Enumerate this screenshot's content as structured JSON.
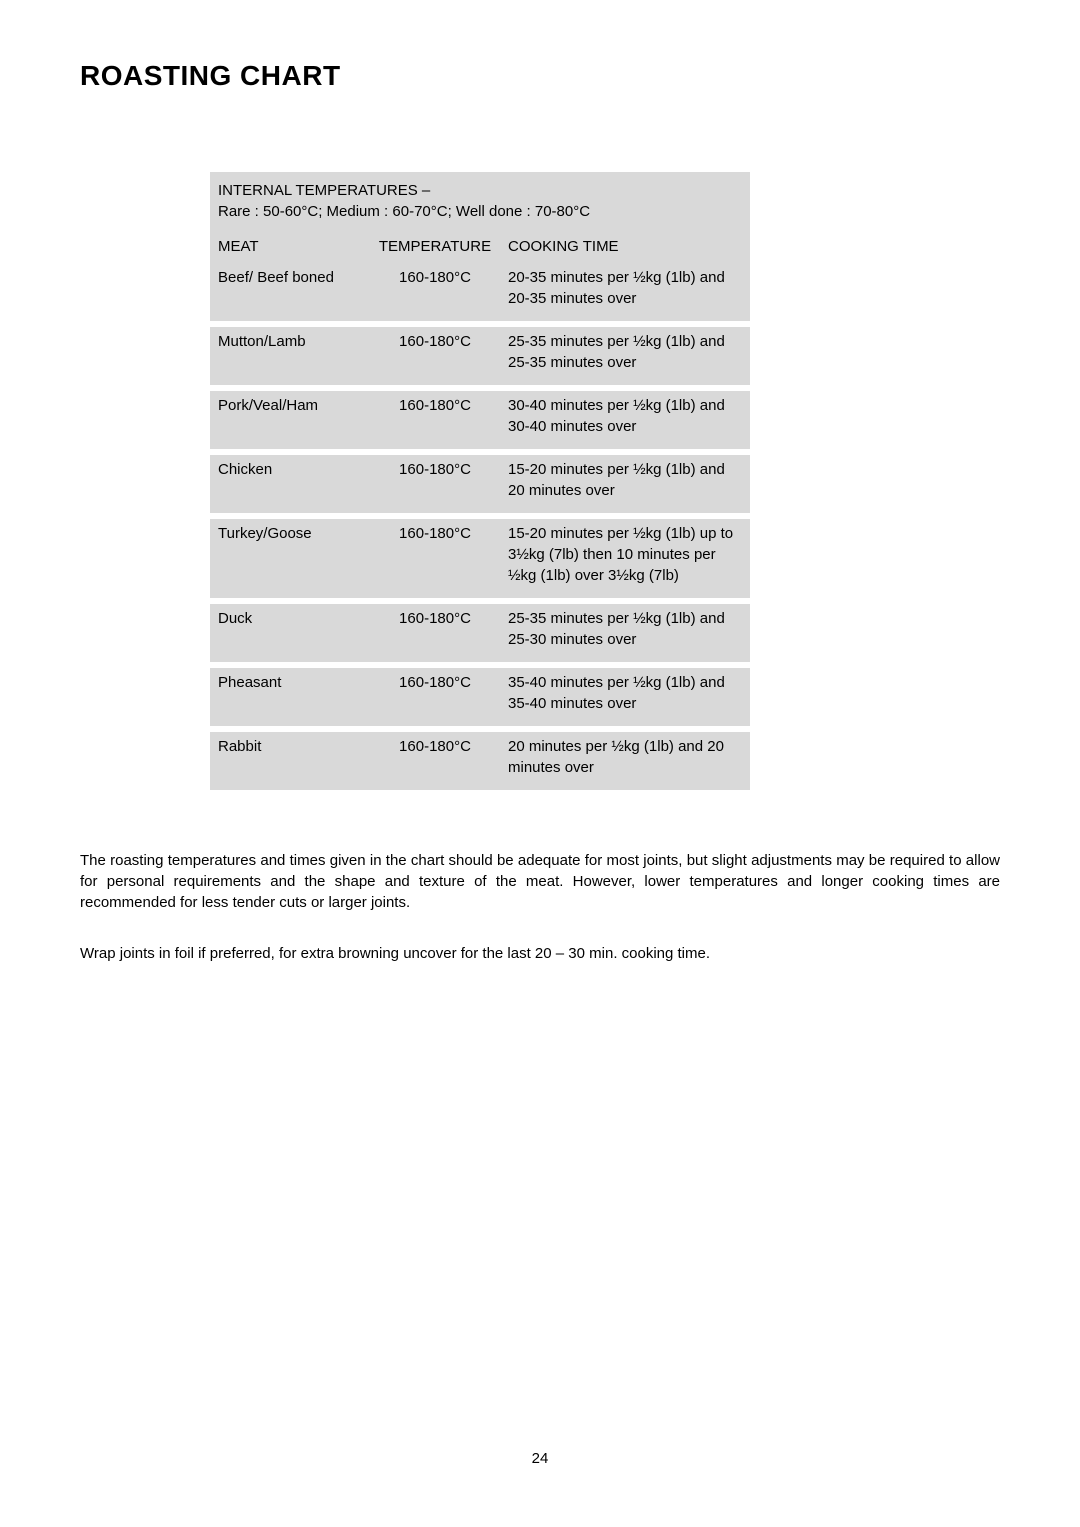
{
  "title": "ROASTING CHART",
  "internalTemps": {
    "line1": "INTERNAL TEMPERATURES –",
    "line2": "Rare : 50-60°C; Medium : 60-70°C; Well done : 70-80°C"
  },
  "columns": {
    "meat": "MEAT",
    "temperature": "TEMPERATURE",
    "cookingTime": "COOKING TIME"
  },
  "rows": [
    {
      "meat": "Beef/ Beef boned",
      "temperature": "160-180°C",
      "cookingTime": "20-35 minutes per ½kg (1lb) and 20-35 minutes over"
    },
    {
      "meat": "Mutton/Lamb",
      "temperature": "160-180°C",
      "cookingTime": "25-35 minutes per ½kg (1lb) and 25-35 minutes over"
    },
    {
      "meat": "Pork/Veal/Ham",
      "temperature": "160-180°C",
      "cookingTime": "30-40 minutes per ½kg (1lb) and 30-40 minutes over"
    },
    {
      "meat": "Chicken",
      "temperature": "160-180°C",
      "cookingTime": "15-20 minutes per ½kg (1lb) and 20 minutes over"
    },
    {
      "meat": "Turkey/Goose",
      "temperature": "160-180°C",
      "cookingTime": "15-20 minutes per ½kg (1lb) up to 3½kg (7lb) then 10 minutes per ½kg (1lb) over 3½kg (7lb)"
    },
    {
      "meat": "Duck",
      "temperature": "160-180°C",
      "cookingTime": "25-35 minutes per ½kg (1lb) and 25-30 minutes over"
    },
    {
      "meat": "Pheasant",
      "temperature": "160-180°C",
      "cookingTime": "35-40 minutes per ½kg (1lb) and 35-40 minutes over"
    },
    {
      "meat": "Rabbit",
      "temperature": "160-180°C",
      "cookingTime": "20 minutes per ½kg (1lb) and 20 minutes over"
    }
  ],
  "bodyText": {
    "p1": "The roasting temperatures and times given in the chart should be adequate for most joints, but slight adjustments may be required to allow for personal requirements and the shape and texture of the meat.  However, lower temperatures and longer cooking times are recommended for less tender cuts or larger joints.",
    "p2": "Wrap joints in foil if preferred, for extra browning uncover for the last 20 – 30 min. cooking time."
  },
  "pageNumber": "24",
  "style": {
    "tableBg": "#d9d9d9",
    "pageBg": "#ffffff",
    "textColor": "#000000",
    "titleFontSize": 28,
    "bodyFontSize": 15
  }
}
